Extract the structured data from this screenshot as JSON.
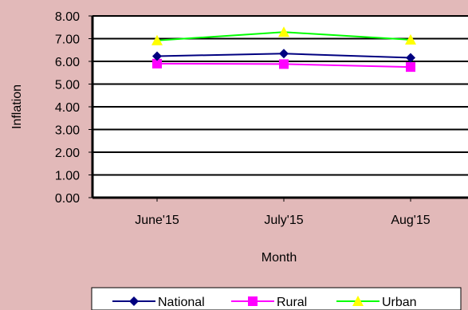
{
  "chart_data": {
    "type": "line",
    "title": "",
    "xlabel": "Month",
    "ylabel": "Inflation",
    "categories": [
      "June'15",
      "July'15",
      "Aug'15"
    ],
    "ylim": [
      0,
      8
    ],
    "yticks": [
      "0.00",
      "1.00",
      "2.00",
      "3.00",
      "4.00",
      "5.00",
      "6.00",
      "7.00",
      "8.00"
    ],
    "grid": "horizontal",
    "legend": "bottom",
    "series": [
      {
        "name": "National",
        "values": [
          6.23,
          6.34,
          6.16
        ],
        "color": "#000080",
        "marker": "diamond"
      },
      {
        "name": "Rural",
        "values": [
          5.9,
          5.88,
          5.75
        ],
        "color": "#ff00ff",
        "marker": "square"
      },
      {
        "name": "Urban",
        "values": [
          6.92,
          7.29,
          6.95
        ],
        "color": "#00ff00",
        "marker": "triangle",
        "marker_fill": "#ffff00"
      }
    ]
  }
}
